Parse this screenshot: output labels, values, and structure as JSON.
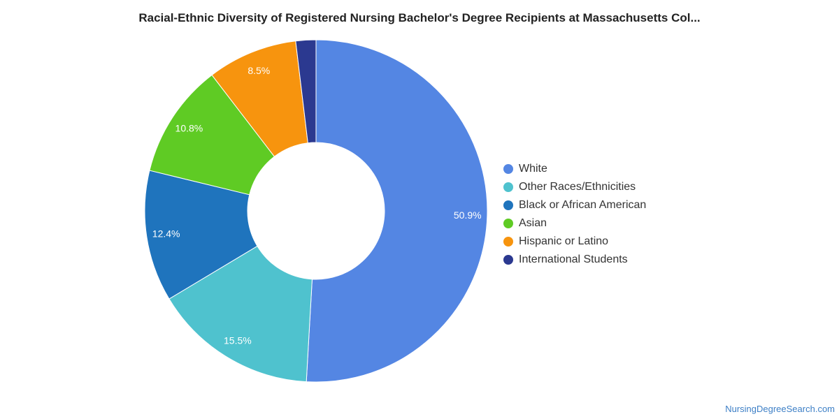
{
  "chart_data": {
    "type": "pie",
    "title": "Racial-Ethnic Diversity of Registered Nursing Bachelor's Degree Recipients at Massachusetts Col...",
    "donut": true,
    "categories": [
      "White",
      "Other Races/Ethnicities",
      "Black or African American",
      "Asian",
      "Hispanic or Latino",
      "International Students"
    ],
    "values": [
      50.9,
      15.5,
      12.4,
      10.8,
      8.5,
      1.9
    ],
    "labels": [
      "50.9%",
      "15.5%",
      "12.4%",
      "10.8%",
      "8.5%",
      ""
    ],
    "colors": [
      "#5486e3",
      "#4fc2ce",
      "#1f74bd",
      "#5fcb24",
      "#f7940e",
      "#2b3990"
    ],
    "legend_position": "right"
  },
  "footer": {
    "source": "NursingDegreeSearch.com"
  }
}
